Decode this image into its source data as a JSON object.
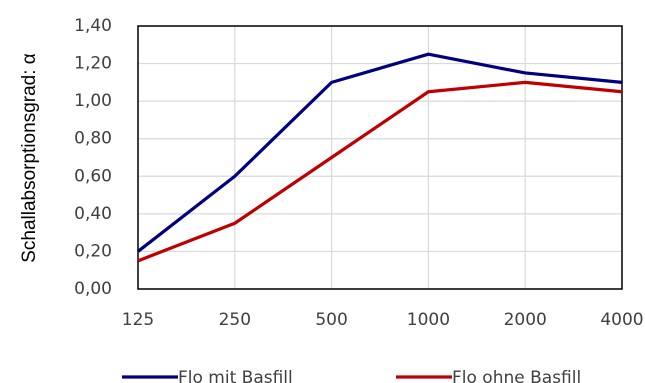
{
  "chart_data": {
    "type": "line",
    "categories": [
      "125",
      "250",
      "500",
      "1000",
      "2000",
      "4000"
    ],
    "series": [
      {
        "name": "Flo mit Basfill",
        "values": [
          0.2,
          0.6,
          1.1,
          1.25,
          1.15,
          1.1
        ],
        "color": "#000080"
      },
      {
        "name": "Flo ohne Basfill",
        "values": [
          0.15,
          0.35,
          0.7,
          1.05,
          1.1,
          1.05
        ],
        "color": "#C00000"
      }
    ],
    "ylabel": "Schallabsorptionsgrad: α",
    "xlabel": "",
    "ylim": [
      0,
      1.4
    ],
    "yticks": [
      "0,00",
      "0,20",
      "0,40",
      "0,60",
      "0,80",
      "1,00",
      "1,20",
      "1,40"
    ],
    "grid": true,
    "legend": "bottom"
  }
}
